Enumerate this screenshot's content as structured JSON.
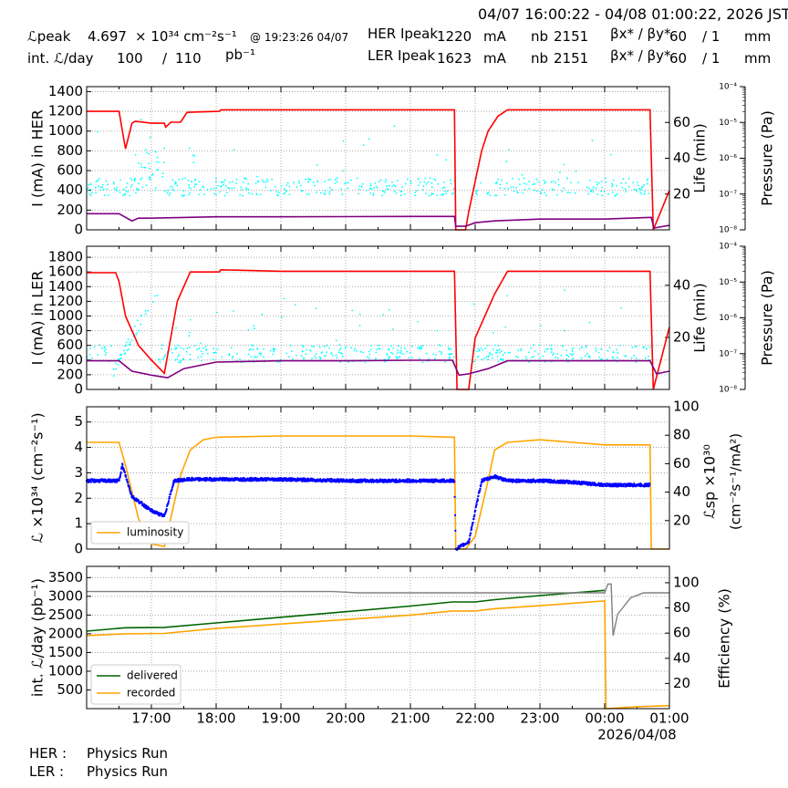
{
  "header": {
    "time_range": "04/07 16:00:22 - 04/08 01:00:22, 2026 JST",
    "lpeak_label": "ℒpeak",
    "lpeak_value": "4.697",
    "lpeak_unit": "× 10³⁴ cm⁻²s⁻¹",
    "lpeak_time": "@ 19:23:26 04/07",
    "intl_label": "int. ℒ/day",
    "intl_delivered": "100",
    "intl_slash": "/",
    "intl_recorded": "110",
    "intl_unit": "pb⁻¹",
    "her_label": "HER Ipeak",
    "her_current": "1220",
    "ler_label": "LER Ipeak",
    "ler_current": "1623",
    "current_unit": "mA",
    "nb_label": "nb",
    "her_nb": "2151",
    "ler_nb": "2151",
    "beta_label": "βx* / βy*",
    "her_betax": "60",
    "her_betay": "/ 1",
    "ler_betax": "60",
    "ler_betay": "/ 1",
    "beta_unit": "mm"
  },
  "footer": {
    "her_label": "HER :",
    "her_status": "Physics Run",
    "ler_label": "LER :",
    "ler_status": "Physics Run"
  },
  "colors": {
    "current": "#ff0000",
    "life": "#800080",
    "pressure": "#00ffff",
    "luminosity": "#ffa500",
    "specific_lumi": "#0000ff",
    "delivered": "#006400",
    "recorded": "#ffa500",
    "efficiency": "#808080"
  },
  "chart_data": [
    {
      "type": "line",
      "name": "HER",
      "ylabel": "I (mA) in HER",
      "y2label": "Life (min)",
      "y3label": "Pressure (Pa)",
      "ylim": [
        0,
        1450
      ],
      "y2lim": [
        0,
        80
      ],
      "y3scale": "log",
      "y3lim": [
        1e-08,
        0.0001
      ],
      "yticks": [
        0,
        200,
        400,
        600,
        800,
        1000,
        1200,
        1400
      ],
      "y2ticks": [
        20,
        40,
        60
      ],
      "y3ticks": [
        "10⁻⁸",
        "10⁻⁷",
        "10⁻⁶",
        "10⁻⁵",
        "10⁻⁴"
      ],
      "series": [
        {
          "key": "current",
          "x": [
            16.0,
            16.5,
            16.6,
            16.7,
            16.75,
            17.0,
            17.2,
            17.22,
            17.3,
            17.45,
            17.55,
            17.8,
            18.05,
            18.07,
            19.0,
            20.0,
            21.0,
            21.68,
            21.7,
            21.85,
            21.9,
            22.1,
            22.2,
            22.35,
            22.5,
            23.0,
            24.0,
            24.7,
            24.75,
            25.0
          ],
          "y": [
            1200,
            1200,
            820,
            1080,
            1100,
            1080,
            1080,
            1040,
            1090,
            1090,
            1190,
            1195,
            1200,
            1215,
            1215,
            1215,
            1215,
            1215,
            0,
            0,
            180,
            800,
            1000,
            1150,
            1215,
            1215,
            1215,
            1215,
            0,
            400
          ]
        },
        {
          "key": "life",
          "x": [
            16.0,
            16.5,
            16.7,
            16.8,
            17.0,
            18.0,
            19.0,
            20.0,
            21.0,
            21.68,
            21.7,
            21.85,
            22.0,
            22.3,
            23.0,
            24.0,
            24.72,
            24.76,
            25.0
          ],
          "y": [
            9,
            9,
            5,
            6.5,
            6.5,
            7.3,
            7.3,
            7.4,
            7.5,
            7.5,
            2,
            2,
            4,
            5,
            6,
            6,
            7,
            1,
            2.5
          ]
        },
        {
          "key": "pressure",
          "note": "scattered points around 1.5e-7 with spikes to ~1e-5"
        }
      ]
    },
    {
      "type": "line",
      "name": "LER",
      "ylabel": "I (mA) in LER",
      "y2label": "Life (min)",
      "y3label": "Pressure (Pa)",
      "ylim": [
        0,
        1950
      ],
      "y2lim": [
        0,
        55
      ],
      "y3scale": "log",
      "y3lim": [
        1e-08,
        0.0001
      ],
      "yticks": [
        0,
        200,
        400,
        600,
        800,
        1000,
        1200,
        1400,
        1600,
        1800
      ],
      "y2ticks": [
        20,
        40
      ],
      "y3ticks": [
        "10⁻⁸",
        "10⁻⁷",
        "10⁻⁶",
        "10⁻⁵",
        "10⁻⁴"
      ],
      "series": [
        {
          "key": "current",
          "x": [
            16.0,
            16.45,
            16.5,
            16.6,
            16.8,
            17.0,
            17.2,
            17.4,
            17.6,
            17.7,
            18.0,
            18.05,
            18.07,
            19.0,
            20.0,
            21.0,
            21.65,
            21.68,
            21.72,
            21.9,
            22.0,
            22.3,
            22.5,
            23.0,
            24.0,
            24.7,
            24.75,
            25.0
          ],
          "y": [
            1590,
            1590,
            1470,
            1000,
            600,
            400,
            220,
            1200,
            1600,
            1600,
            1600,
            1600,
            1630,
            1610,
            1610,
            1610,
            1610,
            1610,
            0,
            0,
            700,
            1300,
            1610,
            1610,
            1610,
            1610,
            0,
            850
          ]
        },
        {
          "key": "life",
          "x": [
            16.0,
            16.5,
            16.7,
            17.0,
            17.25,
            17.5,
            18.0,
            19.0,
            20.0,
            21.0,
            21.65,
            21.75,
            21.9,
            22.2,
            22.5,
            23.0,
            24.0,
            24.7,
            24.8,
            25.0
          ],
          "y": [
            11,
            11,
            7,
            5.5,
            4.5,
            8,
            10.5,
            11,
            11,
            11.2,
            11.2,
            5.5,
            6,
            8,
            11,
            11,
            11,
            11,
            6,
            7
          ]
        },
        {
          "key": "pressure",
          "note": "scattered points around 1e-7 with spikes to ~1e-5"
        }
      ]
    },
    {
      "type": "line",
      "name": "Luminosity",
      "ylabel": "ℒ ×10³⁴ (cm⁻²s⁻¹)",
      "y2label": "ℒsp ×10³⁰",
      "y2label_line2": "(cm⁻²s⁻¹/mA²)",
      "ylim": [
        0,
        5.6
      ],
      "y2lim": [
        0,
        100
      ],
      "yticks": [
        0,
        1,
        2,
        3,
        4,
        5
      ],
      "y2ticks": [
        20,
        40,
        60,
        80,
        100
      ],
      "legend": [
        "luminosity"
      ],
      "legend_position": "lower-left",
      "series": [
        {
          "key": "luminosity",
          "x": [
            16.0,
            16.5,
            16.6,
            16.8,
            17.0,
            17.2,
            17.45,
            17.6,
            17.8,
            18.0,
            19.0,
            20.0,
            21.0,
            21.68,
            21.7,
            21.85,
            22.0,
            22.2,
            22.3,
            22.5,
            23.0,
            23.5,
            24.0,
            24.7,
            24.72,
            25.0
          ],
          "y": [
            4.2,
            4.2,
            3.3,
            1.2,
            0.2,
            0.1,
            2.9,
            3.9,
            4.3,
            4.4,
            4.45,
            4.45,
            4.45,
            4.4,
            0,
            0,
            0.5,
            2.7,
            3.9,
            4.2,
            4.3,
            4.2,
            4.1,
            4.1,
            0,
            0
          ]
        },
        {
          "key": "specific_luminosity",
          "x": [
            16.0,
            16.5,
            16.55,
            16.7,
            17.0,
            17.2,
            17.35,
            17.6,
            18.0,
            19.0,
            20.0,
            21.0,
            21.68,
            21.7,
            21.9,
            22.1,
            22.3,
            22.5,
            23.0,
            23.5,
            24.0,
            24.7
          ],
          "y": [
            48,
            48,
            59,
            37,
            27,
            23,
            48,
            49,
            49,
            49,
            48,
            48,
            48,
            0,
            5,
            48,
            51,
            48,
            48,
            47,
            45,
            45
          ]
        }
      ]
    },
    {
      "type": "line",
      "name": "Integrated luminosity",
      "ylabel": "int. ℒ/day (pb⁻¹)",
      "y2label": "Efficiency (%)",
      "ylim": [
        0,
        3800
      ],
      "y2lim": [
        0,
        113
      ],
      "yticks": [
        500,
        1000,
        1500,
        2000,
        2500,
        3000,
        3500
      ],
      "y2ticks": [
        20,
        40,
        60,
        80,
        100
      ],
      "x_tick_labels": [
        "17:00",
        "18:00",
        "19:00",
        "20:00",
        "21:00",
        "22:00",
        "23:00",
        "00:00",
        "01:00"
      ],
      "x_date_label": "2026/04/08",
      "xlim": [
        "16:00",
        "01:00"
      ],
      "legend": [
        "delivered",
        "recorded"
      ],
      "legend_position": "lower-left",
      "series": [
        {
          "key": "delivered",
          "name": "delivered",
          "x": [
            16.0,
            16.6,
            17.2,
            18.0,
            19.0,
            20.0,
            21.0,
            21.65,
            22.0,
            22.3,
            23.0,
            24.0
          ],
          "y": [
            2070,
            2160,
            2170,
            2290,
            2440,
            2590,
            2740,
            2850,
            2850,
            2910,
            3020,
            3160
          ]
        },
        {
          "key": "recorded",
          "name": "recorded",
          "x": [
            16.0,
            16.6,
            17.2,
            18.0,
            19.0,
            20.0,
            21.0,
            21.65,
            22.0,
            22.3,
            23.0,
            24.0,
            24.02,
            24.5,
            25.0
          ],
          "y": [
            1950,
            2000,
            2010,
            2140,
            2260,
            2380,
            2500,
            2610,
            2610,
            2670,
            2750,
            2880,
            0,
            50,
            80
          ]
        },
        {
          "key": "efficiency",
          "x": [
            16.0,
            19.8,
            20.2,
            21.0,
            22.0,
            23.0,
            24.0,
            24.05,
            24.1,
            24.13,
            24.2,
            24.4,
            24.6,
            25.0
          ],
          "y": [
            93,
            93,
            92,
            92,
            92,
            92,
            92,
            99,
            99,
            58,
            75,
            88,
            92,
            92
          ]
        }
      ]
    }
  ]
}
